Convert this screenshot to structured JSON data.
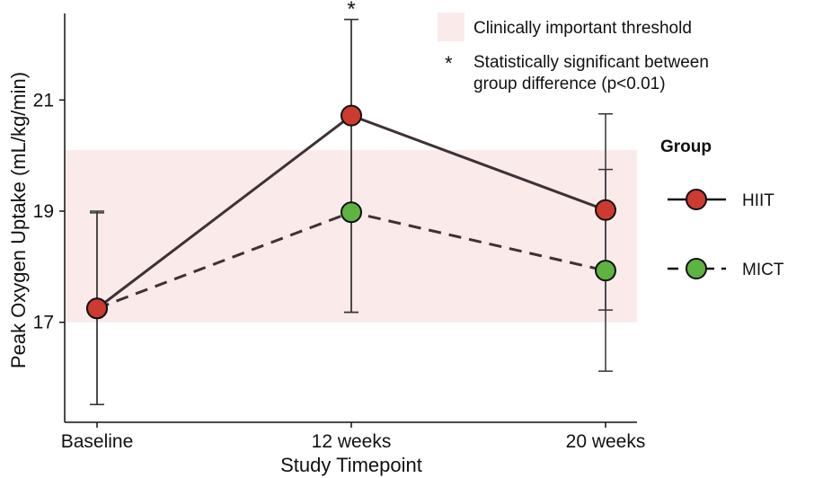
{
  "chart_data": {
    "type": "line",
    "xlabel": "Study Timepoint",
    "ylabel": "Peak Oxygen Uptake (mL/kg/min)",
    "categories": [
      "Baseline",
      "12 weeks",
      "20 weeks"
    ],
    "ylim": [
      15.2,
      22.8
    ],
    "yticks": [
      17,
      19,
      21
    ],
    "grid": false,
    "threshold_band": {
      "label": "Clinically important threshold",
      "range": [
        17.0,
        20.1
      ],
      "color": "#fbeaea"
    },
    "significance": {
      "symbol": "*",
      "label": "Statistically significant between group difference (p<0.01)",
      "category_index": 1,
      "value": 22.8
    },
    "legend": {
      "title": "Group",
      "placement": "right"
    },
    "series": [
      {
        "name": "HIIT",
        "line_style": "solid",
        "color": "#cc3a30",
        "values": [
          17.25,
          20.72,
          19.02
        ],
        "err_low": [
          15.52,
          17.18,
          17.22
        ],
        "err_high": [
          18.97,
          22.45,
          20.75
        ]
      },
      {
        "name": "MICT",
        "line_style": "dashed",
        "color": "#5fb340",
        "values": [
          17.25,
          18.98,
          17.93
        ],
        "err_low": [
          15.52,
          17.18,
          16.12
        ],
        "err_high": [
          19.0,
          22.45,
          19.75
        ]
      }
    ]
  }
}
